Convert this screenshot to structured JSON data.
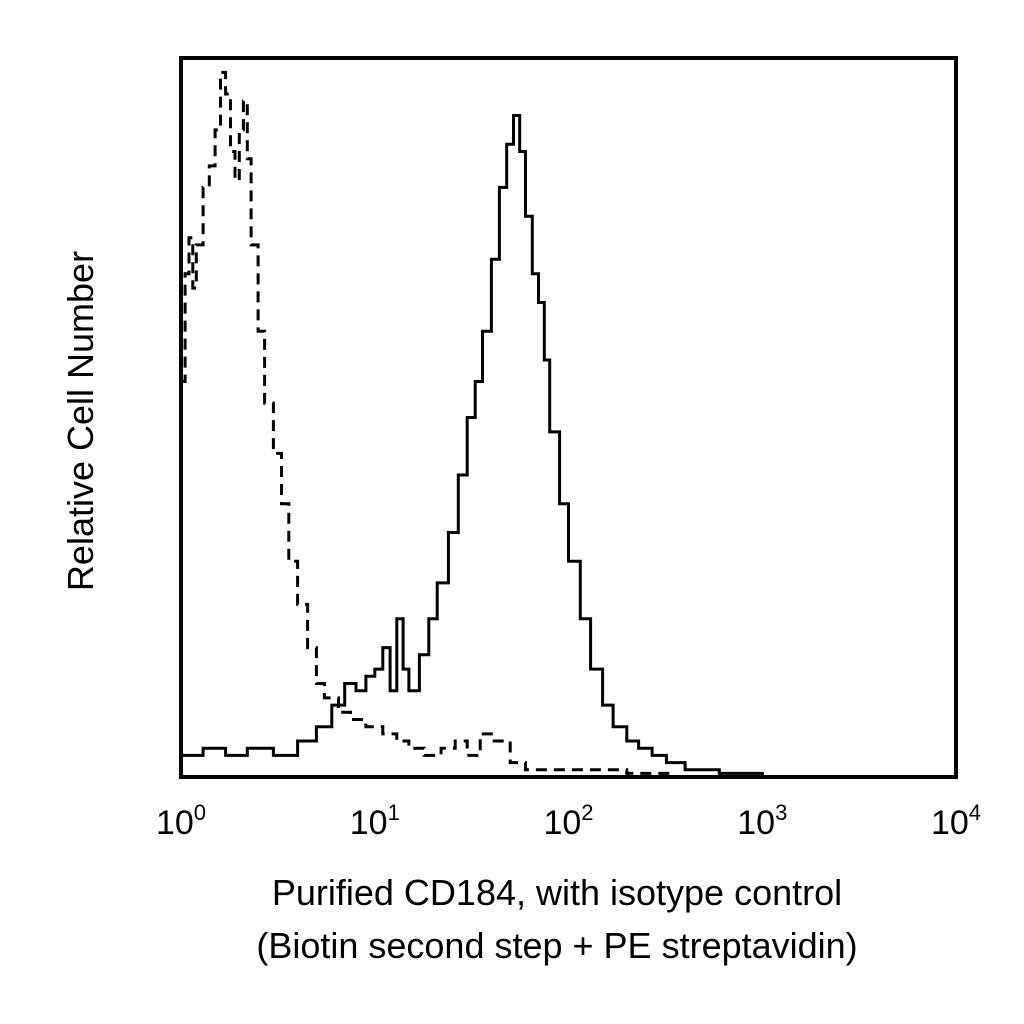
{
  "chart_data": {
    "type": "line",
    "xscale": "log",
    "xlim": [
      1,
      10000
    ],
    "ylim": [
      0,
      1
    ],
    "grid": false,
    "xlabel_lines": [
      "Purified CD184, with isotype control",
      "(Biotin second step + PE streptavidin)"
    ],
    "ylabel": "Relative Cell Number",
    "xticks": [
      {
        "base": "10",
        "exp": "0",
        "value": 1
      },
      {
        "base": "10",
        "exp": "1",
        "value": 10
      },
      {
        "base": "10",
        "exp": "2",
        "value": 100
      },
      {
        "base": "10",
        "exp": "3",
        "value": 1000
      },
      {
        "base": "10",
        "exp": "4",
        "value": 10000
      }
    ],
    "series": [
      {
        "style": "dashed",
        "color": "#000000",
        "x": [
          1.0,
          1.05,
          1.1,
          1.15,
          1.2,
          1.3,
          1.4,
          1.5,
          1.6,
          1.7,
          1.8,
          1.9,
          2.0,
          2.1,
          2.2,
          2.3,
          2.5,
          2.7,
          3.0,
          3.3,
          3.6,
          4.0,
          4.5,
          5.0,
          5.5,
          6.5,
          7.5,
          9.0,
          11,
          13,
          15,
          18,
          22,
          26,
          30,
          35,
          40,
          50,
          60,
          80,
          100,
          130,
          160,
          200,
          260,
          350,
          500
        ],
        "y": [
          0.55,
          0.7,
          0.75,
          0.68,
          0.74,
          0.82,
          0.85,
          0.9,
          0.98,
          0.95,
          0.87,
          0.83,
          0.9,
          0.94,
          0.86,
          0.74,
          0.62,
          0.52,
          0.45,
          0.38,
          0.3,
          0.24,
          0.18,
          0.13,
          0.11,
          0.09,
          0.08,
          0.07,
          0.06,
          0.05,
          0.04,
          0.03,
          0.04,
          0.05,
          0.03,
          0.06,
          0.05,
          0.02,
          0.01,
          0.01,
          0.01,
          0.01,
          0.01,
          0.005,
          0.005,
          0.0,
          0.0
        ]
      },
      {
        "style": "solid",
        "color": "#000000",
        "x": [
          1.0,
          1.3,
          1.7,
          2.2,
          3.0,
          4.0,
          5.0,
          6.0,
          7.0,
          8.0,
          9.0,
          10,
          11,
          12,
          13,
          14,
          15,
          17,
          19,
          21,
          24,
          27,
          30,
          33,
          36,
          40,
          44,
          48,
          52,
          56,
          60,
          65,
          70,
          75,
          80,
          90,
          100,
          115,
          130,
          150,
          170,
          200,
          230,
          270,
          320,
          400,
          600,
          1000,
          1500
        ],
        "y": [
          0.03,
          0.04,
          0.03,
          0.04,
          0.03,
          0.05,
          0.07,
          0.1,
          0.13,
          0.12,
          0.14,
          0.15,
          0.18,
          0.12,
          0.22,
          0.15,
          0.12,
          0.17,
          0.22,
          0.27,
          0.34,
          0.42,
          0.5,
          0.55,
          0.62,
          0.72,
          0.82,
          0.88,
          0.92,
          0.87,
          0.78,
          0.7,
          0.66,
          0.58,
          0.48,
          0.38,
          0.3,
          0.22,
          0.15,
          0.1,
          0.07,
          0.05,
          0.04,
          0.03,
          0.02,
          0.01,
          0.005,
          0.0,
          0.0
        ]
      }
    ]
  }
}
